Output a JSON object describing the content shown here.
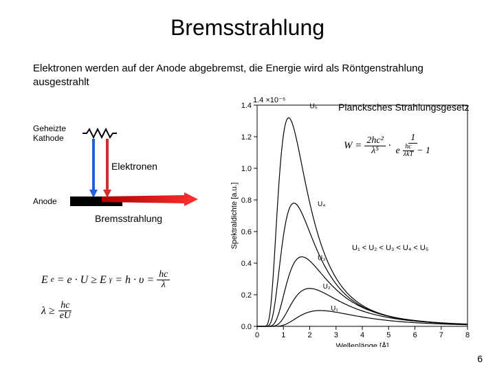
{
  "title": "Bremsstrahlung",
  "description": "Elektronen werden auf der Anode abgebremst, die Energie wird als Röntgenstrahlung ausgestrahlt",
  "diagram": {
    "cathode_label": "Geheizte\nKathode",
    "electrons_label": "Elektronen",
    "anode_label": "Anode",
    "brems_label": "Bremsstrahlung",
    "resistor_color": "#000000",
    "arrow_blue": "#2060e0",
    "arrow_red": "#d03030",
    "anode_fill": "#000000"
  },
  "formula": {
    "line1_left": "E",
    "line1_sub_e": "e",
    "line1_eq": "= e · U ≥ E",
    "line1_sub_y": "γ",
    "line1_eq2": "= h · υ =",
    "line1_frac_num": "hc",
    "line1_frac_den": "λ",
    "line2_lhs": "λ ≥",
    "line2_frac_num": "hc",
    "line2_frac_den": "eU"
  },
  "planck": {
    "label": "Plancksches Strahlungsgesetz",
    "lhs": "W =",
    "frac1_num": "2hc²",
    "frac1_den": "λ⁵",
    "dot": "·",
    "frac2_num": "1",
    "frac2_den_left": "e",
    "frac2_den_exp_num": "hc",
    "frac2_den_exp_den": "λkT",
    "frac2_den_right": "− 1"
  },
  "chart": {
    "type": "line",
    "x_label": "Wellenlänge [Å]",
    "y_label": "Spektraldichte [a.u.]",
    "y_exp_label": "×10⁻⁵",
    "y_top_value": "1.4",
    "xlim": [
      0,
      8
    ],
    "ylim": [
      0,
      1.4
    ],
    "xtick_step": 1,
    "ytick_step": 0.2,
    "background_color": "#ffffff",
    "axis_color": "#000000",
    "curve_color": "#000000",
    "line_width": 1.2,
    "curves": [
      {
        "label": "U₅",
        "peak_x": 1.2,
        "peak_y": 1.32,
        "label_x": 2.0,
        "label_y": 1.38
      },
      {
        "label": "U₄",
        "peak_x": 1.4,
        "peak_y": 0.78,
        "label_x": 2.3,
        "label_y": 0.76
      },
      {
        "label": "U₃",
        "peak_x": 1.7,
        "peak_y": 0.44,
        "label_x": 2.3,
        "label_y": 0.42
      },
      {
        "label": "U₂",
        "peak_x": 2.0,
        "peak_y": 0.24,
        "label_x": 2.5,
        "label_y": 0.24
      },
      {
        "label": "U₁",
        "peak_x": 2.4,
        "peak_y": 0.1,
        "label_x": 2.8,
        "label_y": 0.1
      }
    ],
    "inequality": "U₁ < U₂ < U₃ < U₄ < U₅"
  },
  "page_number": "6"
}
